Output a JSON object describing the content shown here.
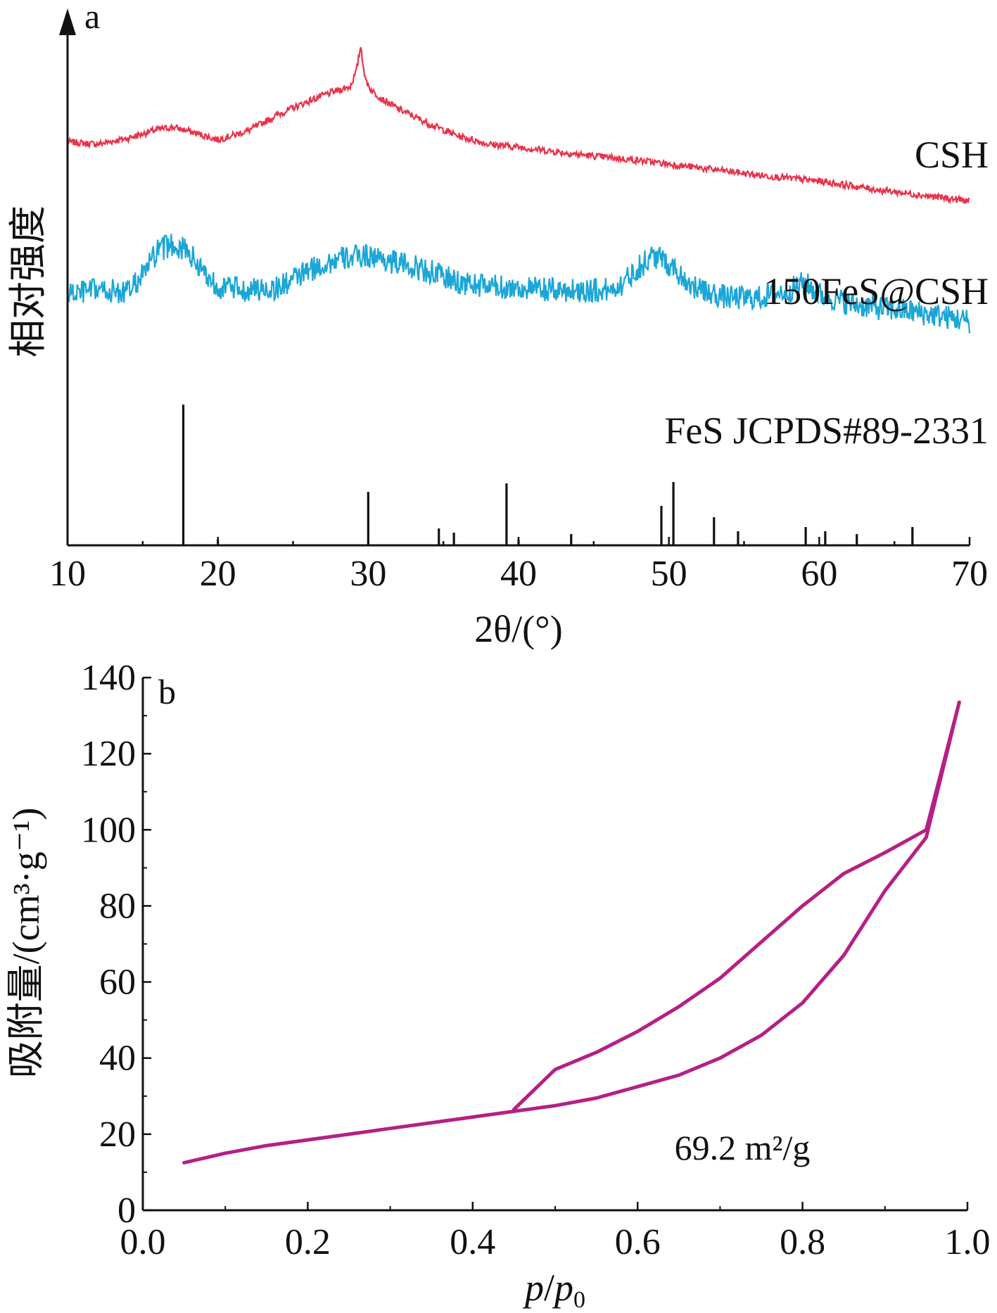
{
  "chart_data": [
    {
      "panel": "a",
      "type": "line",
      "xlabel": "2θ/(°)",
      "ylabel": "相对强度",
      "xlim": [
        10,
        70
      ],
      "xticks": [
        10,
        20,
        30,
        40,
        50,
        60,
        70
      ],
      "grid": false,
      "series": [
        {
          "name": "CSH",
          "color": "#e8334a",
          "noise": 0.045,
          "x": [
            10,
            12,
            14,
            16,
            17,
            18,
            20,
            22,
            24,
            26,
            27,
            28,
            28.8,
            29.2,
            29.5,
            29.8,
            30.2,
            31,
            32,
            34,
            36,
            38,
            40,
            44,
            48,
            52,
            56,
            60,
            64,
            68,
            70
          ],
          "y": [
            0.25,
            0.22,
            0.3,
            0.42,
            0.45,
            0.4,
            0.28,
            0.4,
            0.62,
            0.8,
            0.88,
            0.95,
            1.0,
            1.2,
            1.55,
            1.1,
            0.95,
            0.82,
            0.7,
            0.5,
            0.33,
            0.22,
            0.18,
            0.08,
            0.0,
            -0.1,
            -0.2,
            -0.28,
            -0.4,
            -0.5,
            -0.55
          ]
        },
        {
          "name": "150FeS@CSH",
          "color": "#1aa6d6",
          "noise": 0.16,
          "x": [
            10,
            12,
            14,
            15,
            16,
            17,
            18,
            19,
            20,
            22,
            24,
            26,
            28,
            30,
            32,
            34,
            36,
            38,
            40,
            42,
            44,
            46,
            47,
            48,
            49,
            50,
            51,
            52,
            54,
            56,
            58,
            59,
            60,
            62,
            64,
            66,
            68,
            70
          ],
          "y": [
            0.0,
            0.05,
            0.02,
            0.25,
            0.55,
            0.65,
            0.55,
            0.3,
            0.1,
            0.05,
            0.08,
            0.3,
            0.45,
            0.5,
            0.4,
            0.3,
            0.15,
            0.1,
            0.08,
            0.05,
            0.05,
            0.05,
            0.15,
            0.35,
            0.5,
            0.4,
            0.2,
            0.05,
            -0.05,
            -0.05,
            0.05,
            0.15,
            0.0,
            -0.12,
            -0.18,
            -0.22,
            -0.28,
            -0.35
          ]
        }
      ],
      "sticks": {
        "name": "FeS JCPDS#89-2331",
        "color": "#111111",
        "positions": [
          17.7,
          20.0,
          30.0,
          34.7,
          35.7,
          39.2,
          40.0,
          43.5,
          49.5,
          50.3,
          53.0,
          54.6,
          59.1,
          60.4,
          62.5,
          66.2
        ],
        "intensities": [
          1.0,
          0.04,
          0.38,
          0.12,
          0.09,
          0.44,
          0.04,
          0.08,
          0.28,
          0.45,
          0.2,
          0.1,
          0.13,
          0.1,
          0.08,
          0.13
        ]
      }
    },
    {
      "panel": "b",
      "type": "line",
      "xlabel_italic": "p",
      "xlabel_slash": "/",
      "xlabel_sub": "0",
      "ylabel": "吸附量/(cm³·g⁻¹)",
      "xlim": [
        0.0,
        1.0
      ],
      "ylim": [
        0,
        140
      ],
      "xticks": [
        "0.0",
        "0.2",
        "0.4",
        "0.6",
        "0.8",
        "1.0"
      ],
      "yticks": [
        "0",
        "20",
        "40",
        "60",
        "80",
        "100",
        "120",
        "140"
      ],
      "grid": false,
      "annotation": "69.2 m²/g",
      "series": [
        {
          "color": "#b52085",
          "x": [
            0.05,
            0.1,
            0.15,
            0.2,
            0.25,
            0.3,
            0.35,
            0.4,
            0.45,
            0.5,
            0.55,
            0.6,
            0.65,
            0.7,
            0.75,
            0.8,
            0.85,
            0.9,
            0.95,
            0.99
          ],
          "y": [
            12.5,
            15,
            17,
            18.5,
            20,
            21.5,
            23,
            24.5,
            26,
            27.5,
            29.5,
            32.5,
            35.5,
            40,
            46,
            54.5,
            67,
            84,
            98,
            133.5
          ]
        },
        {
          "color": "#b52085",
          "x": [
            0.99,
            0.95,
            0.9,
            0.85,
            0.8,
            0.75,
            0.7,
            0.65,
            0.6,
            0.55,
            0.5,
            0.45
          ],
          "y": [
            133.5,
            100,
            94,
            88.5,
            80,
            70.5,
            61,
            53.5,
            47,
            41.5,
            37,
            26.5
          ]
        }
      ]
    }
  ]
}
